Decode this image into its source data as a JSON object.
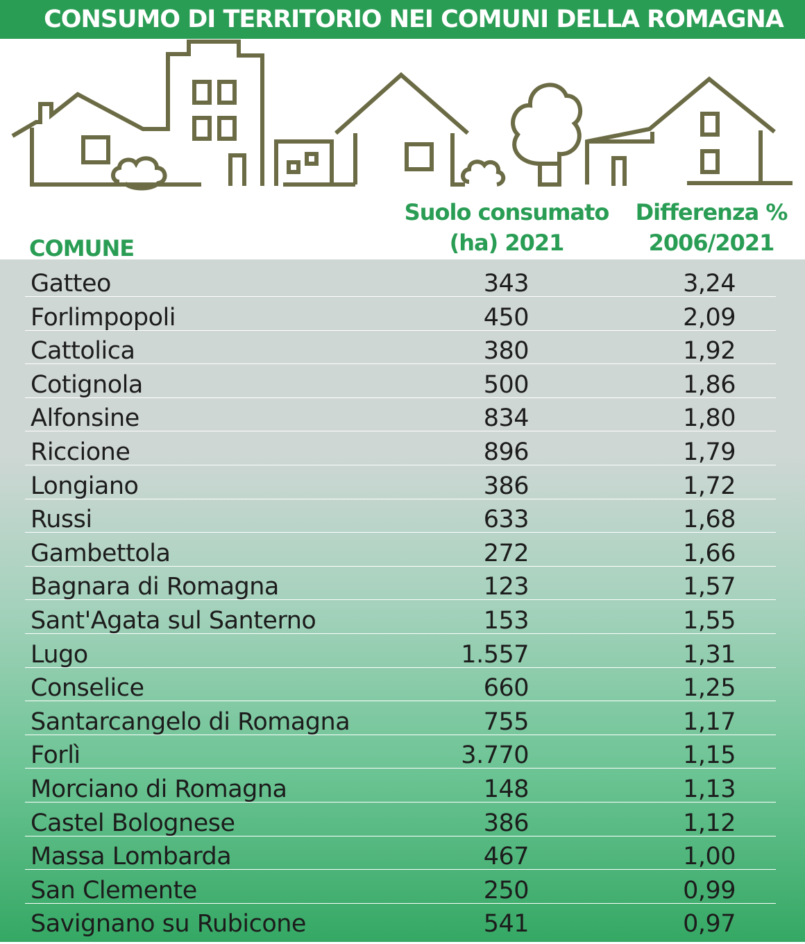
{
  "title": "CONSUMO DI TERRITORIO NEI COMUNI DELLA ROMAGNA",
  "headers": {
    "comune": "COMUNE",
    "suolo_line1": "Suolo consumato",
    "suolo_line2": "(ha) 2021",
    "diff_line1": "Differenza %",
    "diff_line2": "2006/2021"
  },
  "colors": {
    "accent": "#2a9d55",
    "illustration": "#6b6b45",
    "text": "#1c1c1c"
  },
  "chart_data": {
    "type": "table",
    "title": "CONSUMO DI TERRITORIO NEI COMUNI DELLA ROMAGNA",
    "columns": [
      "COMUNE",
      "Suolo consumato (ha) 2021",
      "Differenza % 2006/2021"
    ],
    "rows": [
      {
        "comune": "Gatteo",
        "suolo": "343",
        "diff": "3,24"
      },
      {
        "comune": "Forlimpopoli",
        "suolo": "450",
        "diff": "2,09"
      },
      {
        "comune": "Cattolica",
        "suolo": "380",
        "diff": "1,92"
      },
      {
        "comune": "Cotignola",
        "suolo": "500",
        "diff": "1,86"
      },
      {
        "comune": "Alfonsine",
        "suolo": "834",
        "diff": "1,80"
      },
      {
        "comune": "Riccione",
        "suolo": "896",
        "diff": "1,79"
      },
      {
        "comune": "Longiano",
        "suolo": "386",
        "diff": "1,72"
      },
      {
        "comune": "Russi",
        "suolo": "633",
        "diff": "1,68"
      },
      {
        "comune": "Gambettola",
        "suolo": "272",
        "diff": "1,66"
      },
      {
        "comune": "Bagnara di Romagna",
        "suolo": "123",
        "diff": "1,57"
      },
      {
        "comune": "Sant'Agata sul Santerno",
        "suolo": "153",
        "diff": "1,55"
      },
      {
        "comune": "Lugo",
        "suolo": "1.557",
        "diff": "1,31"
      },
      {
        "comune": "Conselice",
        "suolo": "660",
        "diff": "1,25"
      },
      {
        "comune": "Santarcangelo di Romagna",
        "suolo": "755",
        "diff": "1,17"
      },
      {
        "comune": "Forlì",
        "suolo": "3.770",
        "diff": "1,15"
      },
      {
        "comune": "Morciano di Romagna",
        "suolo": "148",
        "diff": "1,13"
      },
      {
        "comune": "Castel Bolognese",
        "suolo": "386",
        "diff": "1,12"
      },
      {
        "comune": "Massa Lombarda",
        "suolo": "467",
        "diff": "1,00"
      },
      {
        "comune": "San Clemente",
        "suolo": "250",
        "diff": "0,99"
      },
      {
        "comune": "Savignano su Rubicone",
        "suolo": "541",
        "diff": "0,97"
      }
    ]
  }
}
